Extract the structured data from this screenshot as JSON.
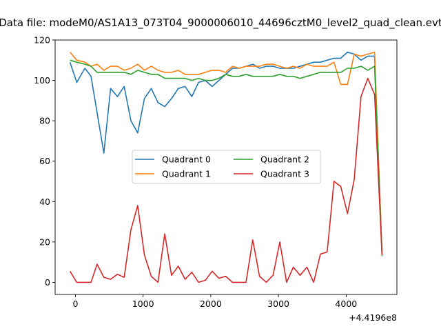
{
  "chart_data": {
    "type": "line",
    "title": "Data file: modeM0/AS1A13_073T04_9000006010_44696cztM0_level2_quad_clean.evt",
    "xlabel": "",
    "ylabel": "",
    "x_offset_label": "+4.4196e8",
    "x_tick_labels": [
      "0",
      "1000",
      "2000",
      "3000",
      "4000"
    ],
    "y_tick_labels": [
      "0",
      "20",
      "40",
      "60",
      "80",
      "100",
      "120"
    ],
    "xlim": [
      -300,
      4750
    ],
    "ylim": [
      -6,
      120
    ],
    "legend_position": "center",
    "legend_columns": 2,
    "grid": false,
    "x": [
      -80,
      20,
      140,
      230,
      320,
      420,
      520,
      620,
      720,
      820,
      920,
      1020,
      1120,
      1220,
      1320,
      1420,
      1520,
      1620,
      1720,
      1820,
      1920,
      2020,
      2120,
      2220,
      2320,
      2420,
      2520,
      2620,
      2720,
      2820,
      2920,
      3020,
      3120,
      3220,
      3320,
      3420,
      3520,
      3620,
      3720,
      3820,
      3920,
      4020,
      4120,
      4220,
      4320,
      4420,
      4530
    ],
    "series": [
      {
        "name": "Quadrant 0",
        "color": "#1f77b4",
        "values": [
          109,
          99,
          106,
          102,
          84,
          64,
          96,
          92,
          97,
          80,
          74,
          91,
          96,
          89,
          87,
          91,
          96,
          97,
          92,
          99,
          100,
          97,
          100,
          103,
          106,
          106,
          107,
          108,
          106,
          107,
          107,
          106,
          106,
          106,
          107,
          108,
          109,
          109,
          110,
          111,
          111,
          114,
          113,
          110,
          112,
          112,
          15
        ]
      },
      {
        "name": "Quadrant 1",
        "color": "#ff7f0e",
        "values": [
          114,
          110,
          109,
          107,
          108,
          105,
          107,
          107,
          105,
          106,
          108,
          105,
          107,
          105,
          104,
          104,
          105,
          103,
          103,
          103,
          104,
          105,
          105,
          104,
          107,
          106,
          107,
          107,
          107,
          108,
          108,
          107,
          106,
          107,
          106,
          108,
          107,
          107,
          107,
          109,
          98,
          98,
          113,
          112,
          113,
          114,
          14
        ]
      },
      {
        "name": "Quadrant 2",
        "color": "#2ca02c",
        "values": [
          110,
          109,
          108,
          107,
          104,
          104,
          104,
          104,
          104,
          103,
          105,
          104,
          103,
          103,
          101,
          101,
          101,
          101,
          100,
          101,
          100,
          100,
          101,
          103,
          102,
          102,
          103,
          102,
          102,
          102,
          102,
          103,
          102,
          102,
          101,
          102,
          103,
          104,
          104,
          104,
          104,
          106,
          106,
          107,
          105,
          107,
          13
        ]
      },
      {
        "name": "Quadrant 3",
        "color": "#d62728",
        "values": [
          5.5,
          0,
          0,
          0,
          9,
          2.5,
          1.5,
          4,
          2.5,
          26,
          38,
          13.5,
          3,
          0,
          24,
          3.5,
          8,
          1.5,
          5,
          0,
          1,
          5.5,
          2,
          3,
          0,
          0,
          0,
          21,
          3,
          0,
          3.5,
          20,
          0,
          7.5,
          3.5,
          7.5,
          0,
          14,
          15,
          50,
          47.5,
          34,
          51,
          92,
          101,
          93,
          13.5
        ]
      }
    ]
  }
}
